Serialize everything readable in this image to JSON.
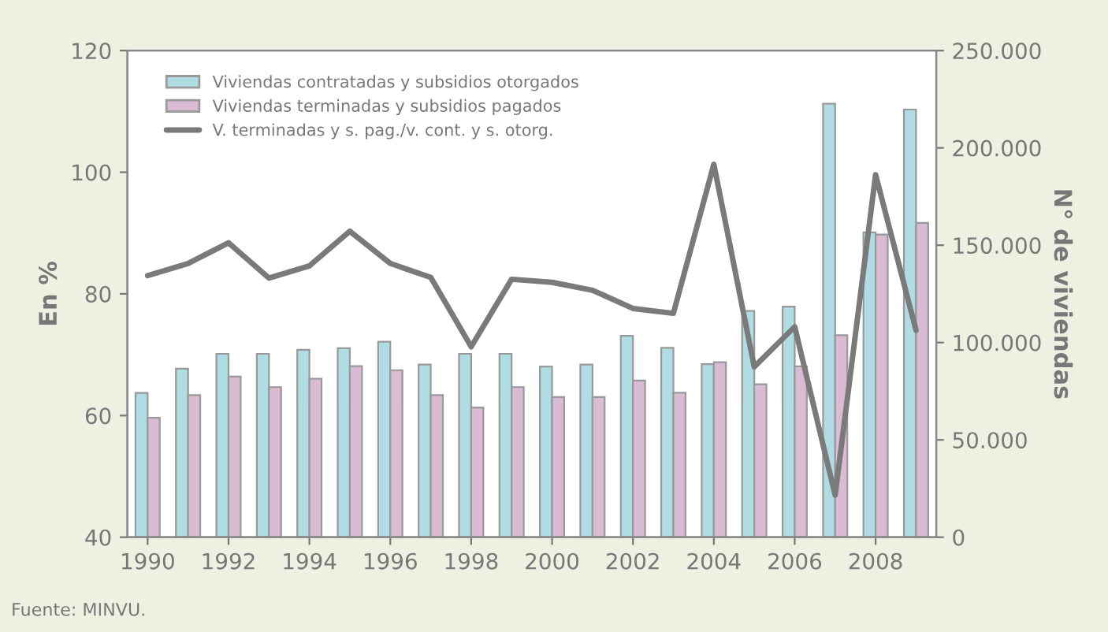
{
  "chart_data": {
    "type": "bar",
    "ylabel": "En %",
    "y2label": "N° de viviendas",
    "x": [
      1990,
      1991,
      1992,
      1993,
      1994,
      1995,
      1996,
      1997,
      1998,
      1999,
      2000,
      2001,
      2002,
      2003,
      2004,
      2005,
      2006,
      2007,
      2008,
      2009
    ],
    "series": [
      {
        "name": "Viviendas contratadas y subsidios otorgados",
        "color": "#b0dde3",
        "axis": "y2",
        "values": [
          74100,
          86600,
          94200,
          94200,
          96300,
          97100,
          100400,
          88700,
          94200,
          94200,
          87700,
          88700,
          103500,
          97300,
          88900,
          116200,
          118400,
          222700,
          156600,
          219700
        ]
      },
      {
        "name": "Viviendas terminadas y subsidios pagados",
        "color": "#d9bcd3",
        "axis": "y2",
        "values": [
          61400,
          73000,
          82500,
          77100,
          81400,
          87900,
          85800,
          73000,
          66600,
          77100,
          72000,
          72000,
          80500,
          74200,
          89900,
          78600,
          87800,
          103800,
          155500,
          161500
        ]
      },
      {
        "name": "V. terminadas y s. pag./v. cont. y s. otorg.",
        "type": "line",
        "color": "#7a7a7a",
        "values": [
          83.0,
          85.0,
          88.4,
          82.6,
          84.6,
          90.3,
          85.0,
          82.7,
          71.3,
          82.4,
          81.9,
          80.6,
          77.6,
          76.8,
          101.3,
          68.0,
          74.6,
          46.9,
          99.6,
          74.0
        ]
      }
    ],
    "xlim": [
      1989.5,
      2009.5
    ],
    "xticks": [
      1990,
      1992,
      1994,
      1996,
      1998,
      2000,
      2002,
      2004,
      2006,
      2008
    ],
    "ylim": [
      40,
      120
    ],
    "yticks": [
      40,
      60,
      80,
      100,
      120
    ],
    "y2lim": [
      0,
      250000
    ],
    "y2ticks": [
      {
        "value": 0,
        "label": "0"
      },
      {
        "value": 50000,
        "label": "50.000"
      },
      {
        "value": 100000,
        "label": "100.000"
      },
      {
        "value": 150000,
        "label": "150.000"
      },
      {
        "value": 200000,
        "label": "200.000"
      },
      {
        "value": 250000,
        "label": "250.000"
      }
    ],
    "legend": "top left",
    "grid": false,
    "annotations": [
      "Fuente: MINVU."
    ]
  }
}
